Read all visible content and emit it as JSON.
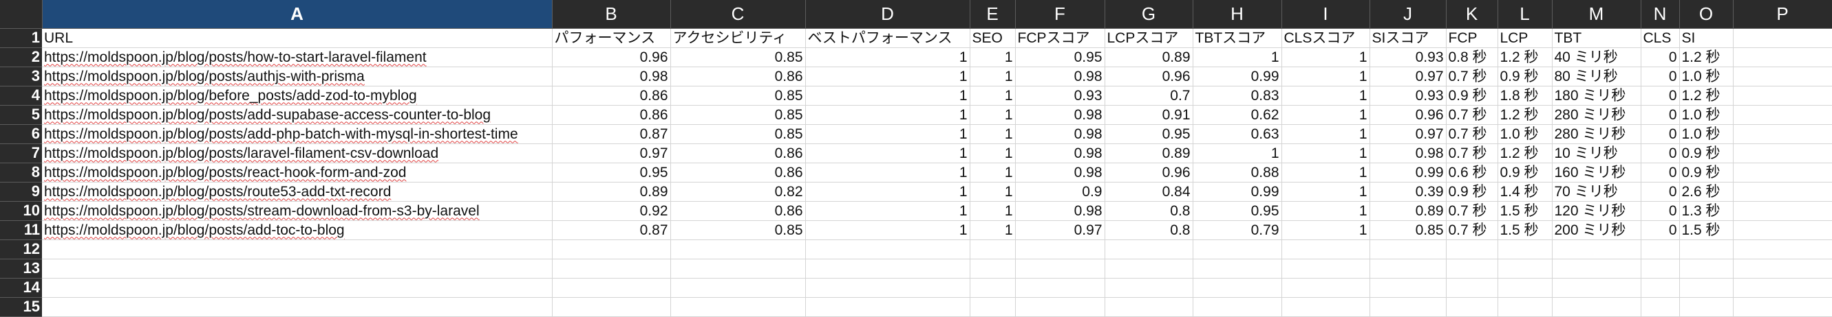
{
  "sheet": {
    "columns": [
      "A",
      "B",
      "C",
      "D",
      "E",
      "F",
      "G",
      "H",
      "I",
      "J",
      "K",
      "L",
      "M",
      "N",
      "O",
      "P"
    ],
    "active_column": "A",
    "rows": [
      [
        "URL",
        "パフォーマンス",
        "アクセシビリティ",
        "ベストパフォーマンス",
        "SEO",
        "FCPスコア",
        "LCPスコア",
        "TBTスコア",
        "CLSスコア",
        "SIスコア",
        "FCP",
        "LCP",
        "TBT",
        "CLS",
        "SI",
        ""
      ],
      [
        "https://moldspoon.jp/blog/posts/how-to-start-laravel-filament",
        "0.96",
        "0.85",
        "1",
        "1",
        "0.95",
        "0.89",
        "1",
        "1",
        "0.93",
        "0.8 秒",
        "1.2 秒",
        "40 ミリ秒",
        "0",
        "1.2 秒",
        ""
      ],
      [
        "https://moldspoon.jp/blog/posts/authjs-with-prisma",
        "0.98",
        "0.86",
        "1",
        "1",
        "0.98",
        "0.96",
        "0.99",
        "1",
        "0.97",
        "0.7 秒",
        "0.9 秒",
        "80 ミリ秒",
        "0",
        "1.0 秒",
        ""
      ],
      [
        "https://moldspoon.jp/blog/before_posts/add-zod-to-myblog",
        "0.86",
        "0.85",
        "1",
        "1",
        "0.93",
        "0.7",
        "0.83",
        "1",
        "0.93",
        "0.9 秒",
        "1.8 秒",
        "180 ミリ秒",
        "0",
        "1.2 秒",
        ""
      ],
      [
        "https://moldspoon.jp/blog/posts/add-supabase-access-counter-to-blog",
        "0.86",
        "0.85",
        "1",
        "1",
        "0.98",
        "0.91",
        "0.62",
        "1",
        "0.96",
        "0.7 秒",
        "1.2 秒",
        "280 ミリ秒",
        "0",
        "1.0 秒",
        ""
      ],
      [
        "https://moldspoon.jp/blog/posts/add-php-batch-with-mysql-in-shortest-time",
        "0.87",
        "0.85",
        "1",
        "1",
        "0.98",
        "0.95",
        "0.63",
        "1",
        "0.97",
        "0.7 秒",
        "1.0 秒",
        "280 ミリ秒",
        "0",
        "1.0 秒",
        ""
      ],
      [
        "https://moldspoon.jp/blog/posts/laravel-filament-csv-download",
        "0.97",
        "0.86",
        "1",
        "1",
        "0.98",
        "0.89",
        "1",
        "1",
        "0.98",
        "0.7 秒",
        "1.2 秒",
        "10 ミリ秒",
        "0",
        "0.9 秒",
        ""
      ],
      [
        "https://moldspoon.jp/blog/posts/react-hook-form-and-zod",
        "0.95",
        "0.86",
        "1",
        "1",
        "0.98",
        "0.96",
        "0.88",
        "1",
        "0.99",
        "0.6 秒",
        "0.9 秒",
        "160 ミリ秒",
        "0",
        "0.9 秒",
        ""
      ],
      [
        "https://moldspoon.jp/blog/posts/route53-add-txt-record",
        "0.89",
        "0.82",
        "1",
        "1",
        "0.9",
        "0.84",
        "0.99",
        "1",
        "0.39",
        "0.9 秒",
        "1.4 秒",
        "70 ミリ秒",
        "0",
        "2.6 秒",
        ""
      ],
      [
        "https://moldspoon.jp/blog/posts/stream-download-from-s3-by-laravel",
        "0.92",
        "0.86",
        "1",
        "1",
        "0.98",
        "0.8",
        "0.95",
        "1",
        "0.89",
        "0.7 秒",
        "1.5 秒",
        "120 ミリ秒",
        "0",
        "1.3 秒",
        ""
      ],
      [
        "https://moldspoon.jp/blog/posts/add-toc-to-blog",
        "0.87",
        "0.85",
        "1",
        "1",
        "0.97",
        "0.8",
        "0.79",
        "1",
        "0.85",
        "0.7 秒",
        "1.5 秒",
        "200 ミリ秒",
        "0",
        "1.5 秒",
        ""
      ],
      [
        "",
        "",
        "",
        "",
        "",
        "",
        "",
        "",
        "",
        "",
        "",
        "",
        "",
        "",
        "",
        ""
      ],
      [
        "",
        "",
        "",
        "",
        "",
        "",
        "",
        "",
        "",
        "",
        "",
        "",
        "",
        "",
        "",
        ""
      ],
      [
        "",
        "",
        "",
        "",
        "",
        "",
        "",
        "",
        "",
        "",
        "",
        "",
        "",
        "",
        "",
        ""
      ],
      [
        "",
        "",
        "",
        "",
        "",
        "",
        "",
        "",
        "",
        "",
        "",
        "",
        "",
        "",
        "",
        ""
      ]
    ],
    "row_numbers": [
      "1",
      "2",
      "3",
      "4",
      "5",
      "6",
      "7",
      "8",
      "9",
      "10",
      "11",
      "12",
      "13",
      "14",
      "15"
    ],
    "numeric_columns": [
      "B",
      "C",
      "D",
      "E",
      "F",
      "G",
      "H",
      "I",
      "J",
      "N"
    ]
  },
  "colors": {
    "header_bg": "#2b2b2b",
    "active_header_bg": "#1f4a7a",
    "grid_line": "#d4d4d4",
    "spell_underline": "#e04040"
  }
}
